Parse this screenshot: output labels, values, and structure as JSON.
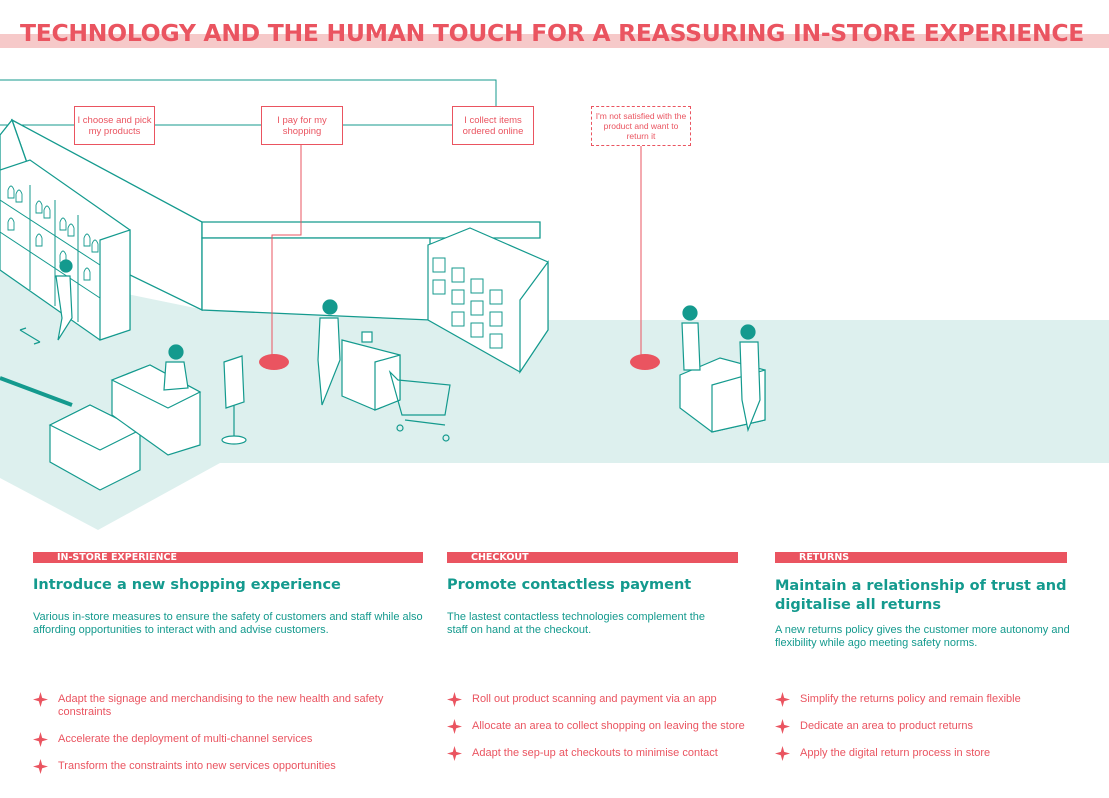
{
  "title": "TECHNOLOGY AND THE HUMAN TOUCH FOR A REASSURING IN-STORE EXPERIENCE",
  "journey": {
    "choose": "I choose and pick my products",
    "pay": "I pay for my shopping",
    "collect": "I collect items ordered online",
    "return": "I'm not satisfied with the product and want to return it"
  },
  "columns": [
    {
      "tag": "IN-STORE EXPERIENCE",
      "heading": "Introduce a new shopping experience",
      "description": "Various in-store measures to ensure the safety of customers and staff while also affording opportunities to interact with and advise customers.",
      "bullets": [
        "Adapt the signage and merchandising to the new health and safety constraints",
        "Accelerate the deployment of multi-channel services",
        "Transform the constraints into new services opportunities"
      ]
    },
    {
      "tag": "CHECKOUT",
      "heading": "Promote contactless payment",
      "description": "The lastest contactless technologies complement the staff on hand at the checkout.",
      "bullets": [
        "Roll out product scanning and payment via an app",
        "Allocate an area to collect shopping on leaving the store",
        "Adapt the sep-up at checkouts to minimise contact"
      ]
    },
    {
      "tag": "RETURNS",
      "heading": "Maintain a relationship of trust and digitalise all returns",
      "description": "A new returns policy gives the customer more autonomy and flexibility while ago meeting safety norms.",
      "bullets": [
        "Simplify the returns policy and remain flexible",
        "Dedicate an area to product returns",
        "Apply the digital return process in store"
      ]
    }
  ],
  "colors": {
    "accent": "#ea5460",
    "teal": "#149a8e",
    "floor": "#ddf0ee",
    "title_band": "#f6c9c9"
  },
  "icons": {
    "bullet": "four-point-star-icon"
  }
}
